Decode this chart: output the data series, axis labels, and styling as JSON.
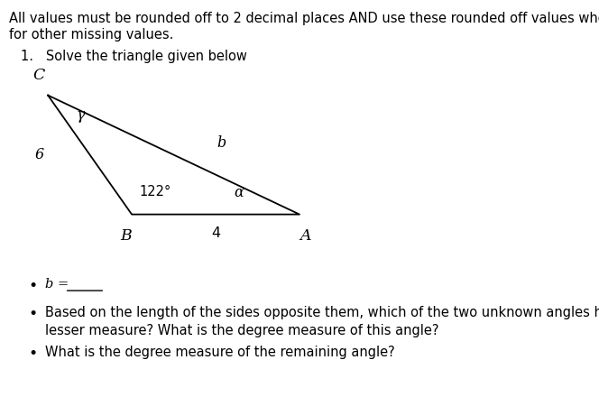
{
  "title_line1": "All values must be rounded off to 2 decimal places AND use these rounded off values when computing",
  "title_line2": "for other missing values.",
  "problem_label": "1.   Solve the triangle given below",
  "triangle": {
    "C": [
      0.08,
      0.76
    ],
    "B": [
      0.22,
      0.46
    ],
    "A": [
      0.5,
      0.46
    ]
  },
  "vertex_labels": {
    "C": [
      0.065,
      0.79
    ],
    "B": [
      0.21,
      0.425
    ],
    "A": [
      0.51,
      0.425
    ]
  },
  "side_labels": {
    "6": [
      0.065,
      0.61
    ],
    "b": [
      0.37,
      0.64
    ],
    "4": [
      0.36,
      0.43
    ]
  },
  "angle_labels": {
    "gamma": [
      0.135,
      0.71
    ],
    "122deg": [
      0.232,
      0.5
    ],
    "alpha": [
      0.39,
      0.495
    ]
  },
  "background_color": "#ffffff",
  "text_color": "#000000",
  "font_size_body": 10.5,
  "font_size_label": 11.5,
  "font_size_vertex": 12.5
}
